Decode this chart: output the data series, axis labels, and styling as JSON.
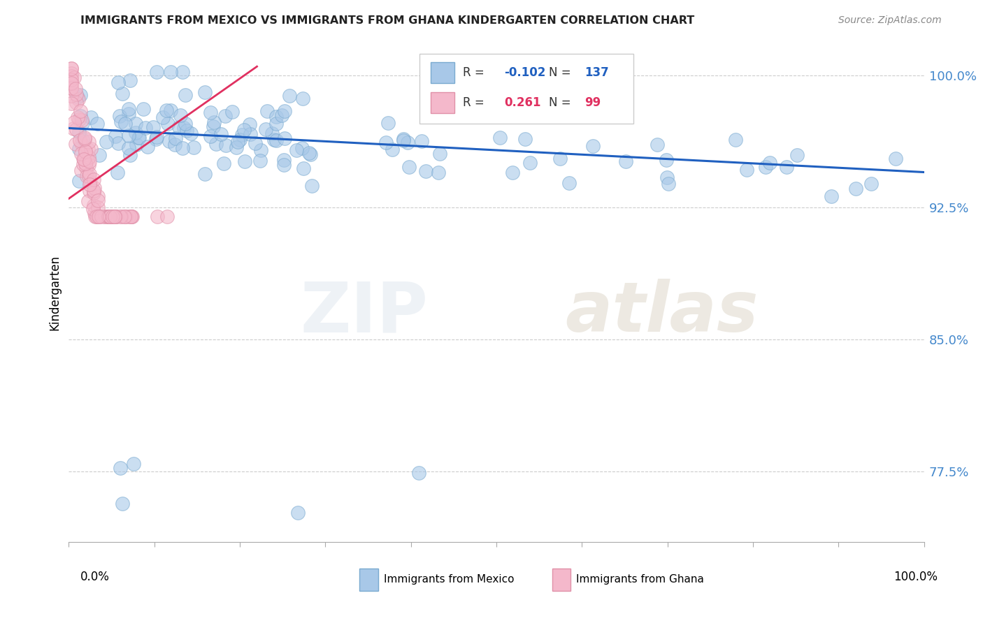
{
  "title": "IMMIGRANTS FROM MEXICO VS IMMIGRANTS FROM GHANA KINDERGARTEN CORRELATION CHART",
  "source": "Source: ZipAtlas.com",
  "ylabel": "Kindergarten",
  "xlim": [
    0.0,
    1.0
  ],
  "ylim": [
    0.735,
    1.018
  ],
  "yticks": [
    0.775,
    0.85,
    0.925,
    1.0
  ],
  "ytick_labels": [
    "77.5%",
    "85.0%",
    "92.5%",
    "100.0%"
  ],
  "mexico_R": "-0.102",
  "mexico_N": "137",
  "ghana_R": "0.261",
  "ghana_N": "99",
  "mexico_color": "#a8c8e8",
  "mexico_edge_color": "#7aaad0",
  "mexico_line_color": "#2060c0",
  "ghana_color": "#f4b8cb",
  "ghana_edge_color": "#e090a8",
  "ghana_line_color": "#e03060",
  "legend_label_mexico": "Immigrants from Mexico",
  "legend_label_ghana": "Immigrants from Ghana",
  "watermark_zip": "ZIP",
  "watermark_atlas": "atlas",
  "background_color": "#ffffff",
  "grid_color": "#cccccc",
  "mexico_line_y0": 0.97,
  "mexico_line_y1": 0.945,
  "ghana_line_x0": 0.0,
  "ghana_line_x1": 0.22,
  "ghana_line_y0": 0.93,
  "ghana_line_y1": 1.005
}
